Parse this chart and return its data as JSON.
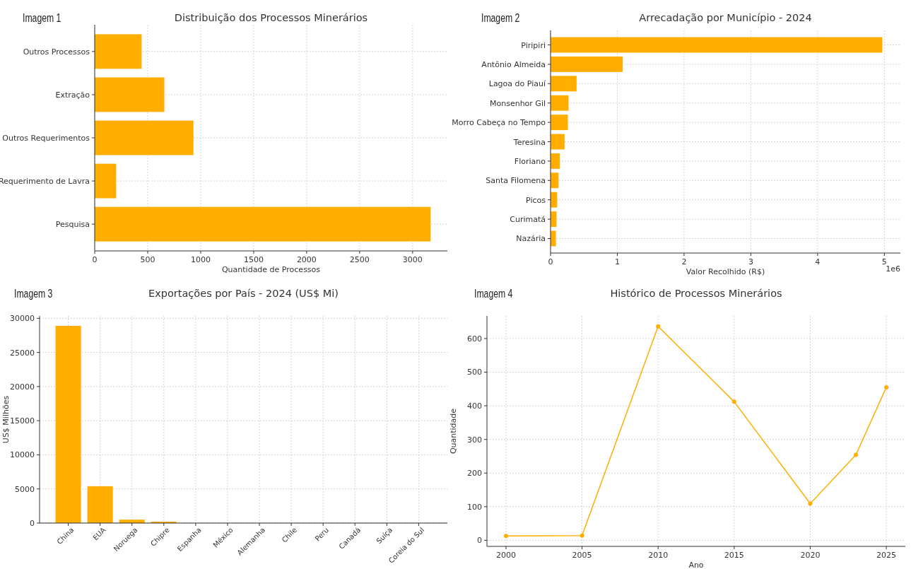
{
  "chart_data": [
    {
      "type": "bar",
      "orientation": "horizontal",
      "title": "Distribuição dos Processos Minerários",
      "xlabel": "Quantidade de Processos",
      "annotations": [
        "Imagem 1"
      ],
      "categories": [
        "Outros Processos",
        "Extração",
        "Outros Requerimentos",
        "Requerimento de Lavra",
        "Pesquisa"
      ],
      "values": [
        443,
        657,
        932,
        203,
        3170
      ],
      "color": "#ffae00",
      "xlim": [
        0,
        3328
      ],
      "xticks": [
        0,
        500,
        1000,
        1500,
        2000,
        2500,
        3000
      ],
      "grid": true
    },
    {
      "type": "bar",
      "orientation": "horizontal",
      "title": "Arrecadação por Município - 2024",
      "xlabel": "Valor Recolhido (R$)",
      "annotations": [
        "Imagem 2",
        "1e6"
      ],
      "categories": [
        "Piripiri",
        "Antônio Almeida",
        "Lagoa do Piauí",
        "Monsenhor Gil",
        "Morro Cabeça no Tempo",
        "Teresina",
        "Floriano",
        "Santa Filomena",
        "Picos",
        "Curimatá",
        "Nazária"
      ],
      "values": [
        4.97,
        1.08,
        0.39,
        0.27,
        0.26,
        0.21,
        0.14,
        0.12,
        0.1,
        0.09,
        0.08
      ],
      "color": "#ffae00",
      "xlim": [
        0,
        5.24
      ],
      "xticks": [
        0,
        1,
        2,
        3,
        4,
        5
      ],
      "grid": true
    },
    {
      "type": "bar",
      "title": "Exportações por País - 2024 (US$ Mi)",
      "ylabel": "US$ Milhões",
      "annotations": [
        "Imagem 3"
      ],
      "categories": [
        "China",
        "EUA",
        "Noruega",
        "Chipre",
        "Espanha",
        "México",
        "Alemanha",
        "Chile",
        "Peru",
        "Canadá",
        "Suíça",
        "Coreia do Sul"
      ],
      "values": [
        28900,
        5400,
        500,
        200,
        0,
        0,
        0,
        0,
        0,
        0,
        0,
        0
      ],
      "color": "#ffae00",
      "ylim": [
        0,
        30345
      ],
      "yticks": [
        0,
        5000,
        10000,
        15000,
        20000,
        25000,
        30000
      ],
      "grid": true
    },
    {
      "type": "line",
      "title": "Histórico de Processos Minerários",
      "xlabel": "Ano",
      "ylabel": "Quantidade",
      "annotations": [
        "Imagem 4"
      ],
      "x": [
        2000,
        2005,
        2010,
        2015,
        2020,
        2023,
        2025
      ],
      "values": [
        13,
        14,
        636,
        412,
        109,
        254,
        455
      ],
      "color": "#ffae00",
      "marker": "circle",
      "xlim": [
        1998.75,
        2026.25
      ],
      "xticks": [
        2000,
        2005,
        2010,
        2015,
        2020,
        2025
      ],
      "ylim": [
        -18,
        667
      ],
      "yticks": [
        0,
        100,
        200,
        300,
        400,
        500,
        600
      ],
      "grid": true
    }
  ]
}
